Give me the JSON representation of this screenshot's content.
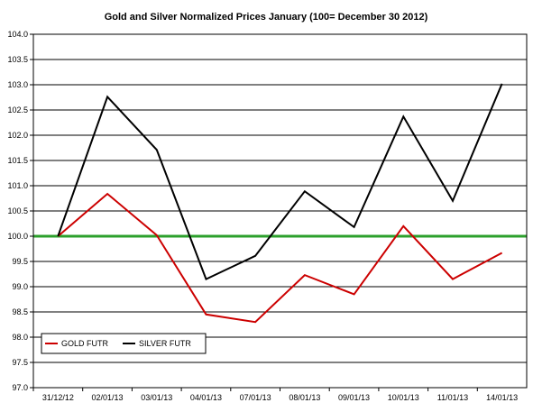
{
  "chart_data": {
    "type": "line",
    "title": "Gold and Silver Normalized Prices January (100= December 30 2012)",
    "xlabel": "",
    "ylabel": "",
    "categories": [
      "31/12/12",
      "02/01/13",
      "03/01/13",
      "04/01/13",
      "07/01/13",
      "08/01/13",
      "09/01/13",
      "10/01/13",
      "11/01/13",
      "14/01/13"
    ],
    "ylim": [
      97.0,
      104.0
    ],
    "yticks": [
      "97.0",
      "97.5",
      "98.0",
      "98.5",
      "99.0",
      "99.5",
      "100.0",
      "100.5",
      "101.0",
      "101.5",
      "102.0",
      "102.5",
      "103.0",
      "103.5",
      "104.0"
    ],
    "grid": true,
    "legend_position": "bottom-left",
    "baseline": {
      "value": 100.0,
      "color": "#2ca02c"
    },
    "series": [
      {
        "name": "GOLD FUTR",
        "color": "#cc0000",
        "values": [
          100.0,
          100.84,
          100.02,
          98.45,
          98.3,
          99.23,
          98.85,
          100.2,
          99.15,
          99.67
        ]
      },
      {
        "name": "SILVER FUTR",
        "color": "#000000",
        "values": [
          100.0,
          102.76,
          101.71,
          99.15,
          99.61,
          100.89,
          100.18,
          102.37,
          100.7,
          103.02
        ]
      }
    ]
  }
}
